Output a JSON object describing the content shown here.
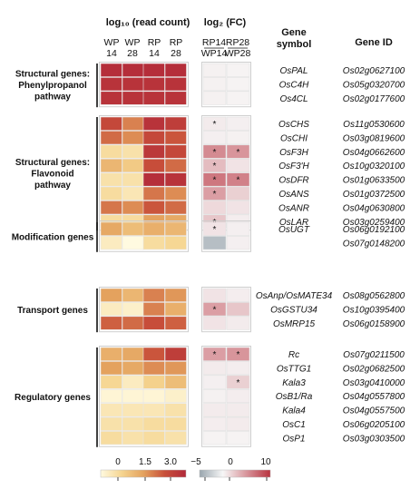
{
  "headers": {
    "left_title": "log₁₀ (read count)",
    "right_title": "log₂ (FC)",
    "left_cols": [
      [
        "WP",
        "14"
      ],
      [
        "WP",
        "28"
      ],
      [
        "RP",
        "14"
      ],
      [
        "RP",
        "28"
      ]
    ],
    "right_cols": [
      [
        "RP14",
        "WP14"
      ],
      [
        "RP28",
        "WP28"
      ]
    ],
    "symbol_title": [
      "Gene",
      "symbol"
    ],
    "id_title": "Gene ID"
  },
  "legend_left": {
    "ticks": [
      "0",
      "1.5",
      "3.0"
    ]
  },
  "legend_right": {
    "ticks": [
      "−5",
      "0",
      "10"
    ]
  },
  "colors": {
    "read_scale": [
      "#fffae0",
      "#f5d48f",
      "#e4a25e",
      "#c8503a",
      "#b2293a"
    ],
    "fc_neg": "#9aa6ae",
    "fc_zero": "#f7f7f7",
    "fc_pos": "#b8323f"
  },
  "chart_data": {
    "type": "heatmap",
    "groups": [
      {
        "label": [
          "Structural genes:",
          "Phenylpropanol",
          "pathway"
        ],
        "genes": [
          {
            "symbol": "OsPAL",
            "id": "Os02g0627100",
            "read": [
              2.9,
              2.9,
              2.9,
              2.9
            ],
            "fc": [
              0.3,
              0.2
            ],
            "sig": [
              false,
              false
            ]
          },
          {
            "symbol": "OsC4H",
            "id": "Os05g0320700",
            "read": [
              2.8,
              2.8,
              2.8,
              2.8
            ],
            "fc": [
              0.3,
              0.2
            ],
            "sig": [
              false,
              false
            ]
          },
          {
            "symbol": "Os4CL",
            "id": "Os02g0177600",
            "read": [
              2.8,
              2.8,
              2.8,
              2.8
            ],
            "fc": [
              0.3,
              0.2
            ],
            "sig": [
              false,
              false
            ]
          }
        ]
      },
      {
        "label": [
          "Structural genes:",
          "Flavonoid",
          "pathway"
        ],
        "genes": [
          {
            "symbol": "OsCHS",
            "id": "Os11g0530600",
            "read": [
              2.4,
              1.8,
              2.8,
              2.6
            ],
            "fc": [
              0.6,
              0.4
            ],
            "sig": [
              true,
              false
            ]
          },
          {
            "symbol": "OsCHI",
            "id": "Os03g0819600",
            "read": [
              2.0,
              1.7,
              2.4,
              2.2
            ],
            "fc": [
              0.4,
              0.3
            ],
            "sig": [
              false,
              false
            ]
          },
          {
            "symbol": "OsF3H",
            "id": "Os04g0662600",
            "read": [
              0.6,
              0.5,
              2.7,
              2.4
            ],
            "fc": [
              5.5,
              5.0
            ],
            "sig": [
              true,
              true
            ]
          },
          {
            "symbol": "OsF3'H",
            "id": "Os10g0320100",
            "read": [
              1.2,
              0.9,
              2.3,
              2.0
            ],
            "fc": [
              3.0,
              1.0
            ],
            "sig": [
              true,
              false
            ]
          },
          {
            "symbol": "OsDFR",
            "id": "Os01g0633500",
            "read": [
              0.5,
              0.5,
              2.9,
              2.8
            ],
            "fc": [
              6.5,
              6.0
            ],
            "sig": [
              true,
              true
            ]
          },
          {
            "symbol": "OsANS",
            "id": "Os01g0372500",
            "read": [
              0.6,
              0.4,
              1.9,
              1.7
            ],
            "fc": [
              4.5,
              2.0
            ],
            "sig": [
              true,
              false
            ]
          },
          {
            "symbol": "OsANR",
            "id": "Os04g0630800",
            "read": [
              1.9,
              1.7,
              2.2,
              2.0
            ],
            "fc": [
              1.5,
              1.0
            ],
            "sig": [
              false,
              false
            ]
          },
          {
            "symbol": "OsLAR",
            "id": "Os03g0259400",
            "read": [
              0.6,
              0.6,
              1.5,
              1.4
            ],
            "fc": [
              2.5,
              0.5
            ],
            "sig": [
              true,
              false
            ]
          }
        ]
      },
      {
        "label": [
          "Modification genes"
        ],
        "genes": [
          {
            "symbol": "OsUGT",
            "id": "Os06g0192100",
            "read": [
              1.4,
              1.1,
              1.3,
              1.2
            ],
            "fc": [
              1.0,
              0.4
            ],
            "sig": [
              true,
              false
            ]
          },
          {
            "symbol": "",
            "id": "Os07g0148200",
            "read": [
              0.3,
              0.0,
              0.6,
              0.7
            ],
            "fc": [
              -3.5,
              0.4
            ],
            "sig": [
              false,
              false
            ]
          }
        ]
      },
      {
        "label": [
          "Transport genes"
        ],
        "genes": [
          {
            "symbol": "OsAnp/OsMATE34",
            "id": "Os08g0562800",
            "read": [
              1.5,
              1.2,
              1.8,
              1.6
            ],
            "fc": [
              1.0,
              0.5
            ],
            "sig": [
              false,
              false
            ]
          },
          {
            "symbol": "OsGSTU34",
            "id": "Os10g0395400",
            "read": [
              0.3,
              0.2,
              1.8,
              1.3
            ],
            "fc": [
              4.5,
              2.5
            ],
            "sig": [
              true,
              false
            ]
          },
          {
            "symbol": "OsMRP15",
            "id": "Os06g0158900",
            "read": [
              2.1,
              2.0,
              2.3,
              2.1
            ],
            "fc": [
              1.0,
              0.6
            ],
            "sig": [
              false,
              false
            ]
          }
        ]
      },
      {
        "label": [
          "Regulatory genes"
        ],
        "genes": [
          {
            "symbol": "Rc",
            "id": "Os07g0211500",
            "read": [
              1.3,
              1.4,
              2.2,
              2.6
            ],
            "fc": [
              4.5,
              5.0
            ],
            "sig": [
              true,
              true
            ]
          },
          {
            "symbol": "OsTTG1",
            "id": "Os02g0682500",
            "read": [
              1.5,
              1.4,
              1.7,
              1.6
            ],
            "fc": [
              0.6,
              0.5
            ],
            "sig": [
              false,
              false
            ]
          },
          {
            "symbol": "Kala3",
            "id": "Os03g0410000",
            "read": [
              0.7,
              0.3,
              0.8,
              1.1
            ],
            "fc": [
              0.4,
              2.0
            ],
            "sig": [
              false,
              true
            ]
          },
          {
            "symbol": "OsB1/Ra",
            "id": "Os04g0557800",
            "read": [
              0.1,
              0.1,
              0.1,
              0.2
            ],
            "fc": [
              0.3,
              0.5
            ],
            "sig": [
              false,
              false
            ]
          },
          {
            "symbol": "Kala4",
            "id": "Os04g0557500",
            "read": [
              0.4,
              0.4,
              0.4,
              0.5
            ],
            "fc": [
              0.6,
              0.6
            ],
            "sig": [
              false,
              false
            ]
          },
          {
            "symbol": "OsC1",
            "id": "Os06g0205100",
            "read": [
              0.5,
              0.5,
              0.6,
              0.6
            ],
            "fc": [
              0.5,
              0.6
            ],
            "sig": [
              false,
              false
            ]
          },
          {
            "symbol": "OsP1",
            "id": "Os03g0303500",
            "read": [
              0.6,
              0.5,
              0.6,
              0.5
            ],
            "fc": [
              0.2,
              0.2
            ],
            "sig": [
              false,
              false
            ]
          }
        ]
      }
    ]
  }
}
